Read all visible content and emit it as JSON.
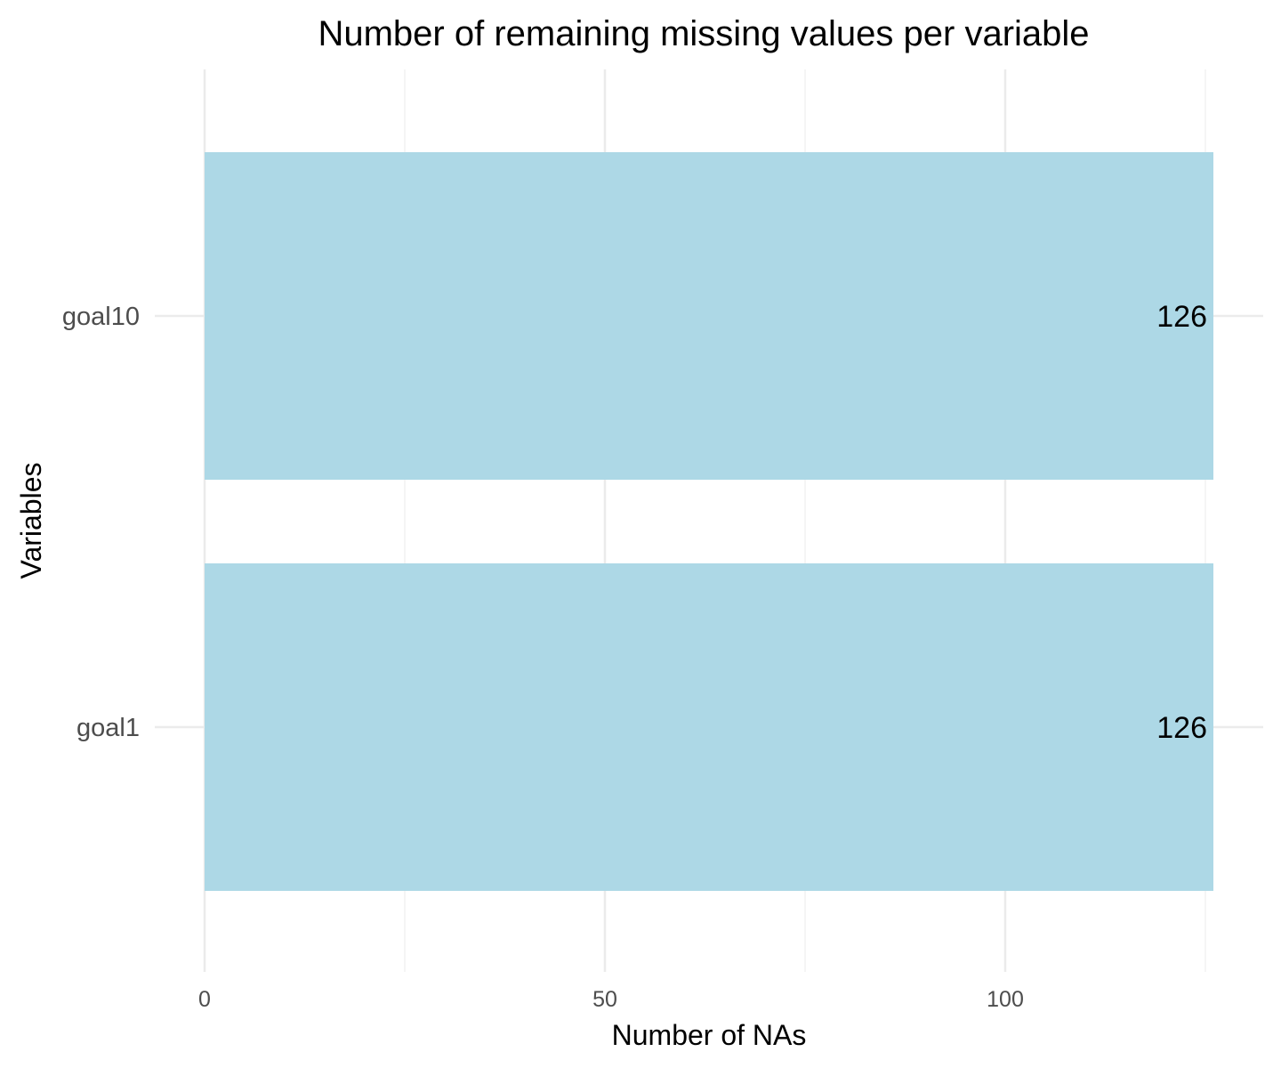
{
  "chart_data": {
    "type": "bar",
    "orientation": "horizontal",
    "title": "Number of remaining missing values per variable",
    "xlabel": "Number of NAs",
    "ylabel": "Variables",
    "categories": [
      "goal10",
      "goal1"
    ],
    "values": [
      126,
      126
    ],
    "data_labels": [
      "126",
      "126"
    ],
    "x_ticks": [
      0,
      50,
      100
    ],
    "x_tick_labels": [
      "0",
      "50",
      "100"
    ],
    "xlim": [
      0,
      126
    ],
    "grid": true,
    "legend": "none",
    "colors": {
      "bar": "#add8e6",
      "grid_major": "#ebebeb",
      "grid_minor": "#f5f5f5",
      "label_text": "#000000",
      "axis_text": "#4d4d4d"
    }
  }
}
